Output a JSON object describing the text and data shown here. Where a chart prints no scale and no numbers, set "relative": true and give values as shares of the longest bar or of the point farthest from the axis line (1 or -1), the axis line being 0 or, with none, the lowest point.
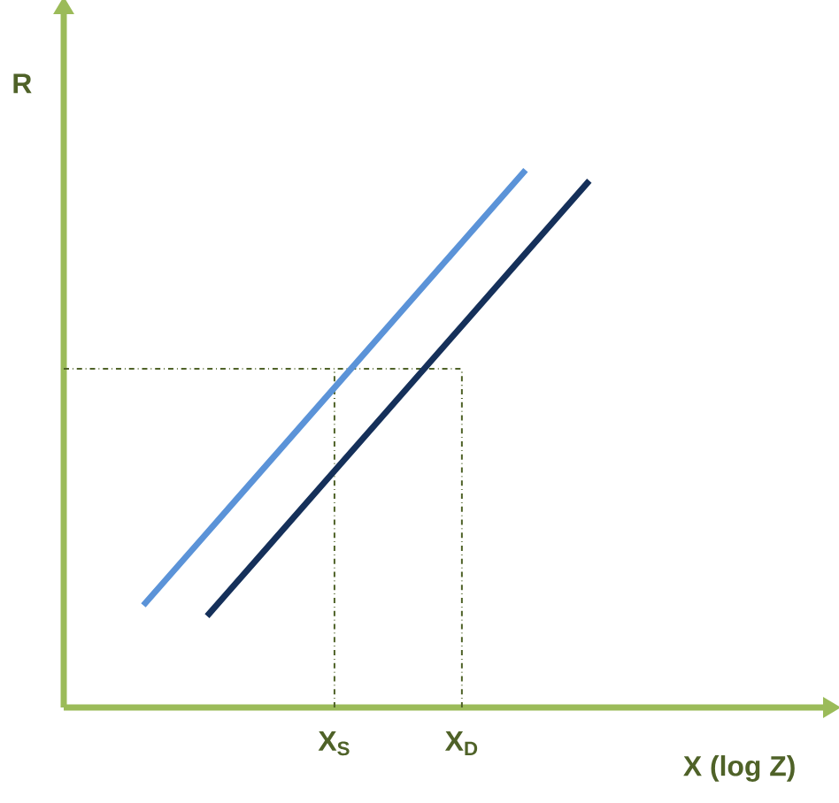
{
  "chart_data": {
    "type": "line",
    "relative": true,
    "xlabel": "X (log Z)",
    "ylabel": "R",
    "categories": [
      null,
      null,
      null,
      "X$_{S}$",
      null,
      "X$_{D}$",
      null,
      null
    ],
    "line_style": "solid",
    "marker": "none",
    "series": [
      {
        "color": "#5b93d8",
        "values": [
          0.19,
          0.325,
          0.46,
          0.595,
          0.73,
          0.865,
          1.0,
          null
        ]
      },
      {
        "color": "#15305a",
        "values": [
          null,
          0.17,
          0.305,
          0.44,
          0.575,
          0.71,
          0.845,
          0.98
        ]
      }
    ],
    "ref_lines": [
      {
        "axis": "y",
        "value": 0.63,
        "color": "#4f6228",
        "line_style": "dashed"
      },
      {
        "axis": "x",
        "value": "X$_{S}$",
        "color": "#4f6228",
        "line_style": "dashed"
      },
      {
        "axis": "x",
        "value": "X$_{D}$",
        "color": "#4f6228",
        "line_style": "dashed"
      }
    ]
  }
}
